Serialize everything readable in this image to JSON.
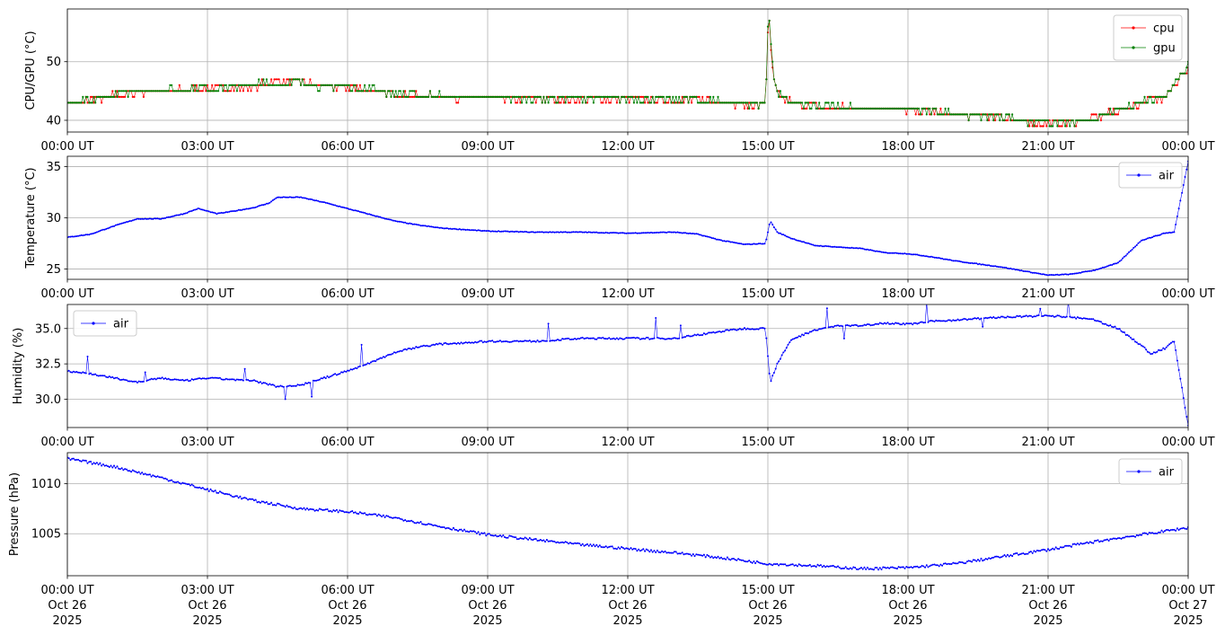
{
  "time_ticks": [
    "00:00 UT",
    "03:00 UT",
    "06:00 UT",
    "09:00 UT",
    "12:00 UT",
    "15:00 UT",
    "18:00 UT",
    "21:00 UT",
    "00:00 UT"
  ],
  "date_ticks": [
    [
      "Oct 26",
      "2025"
    ],
    [
      "Oct 26",
      "2025"
    ],
    [
      "Oct 26",
      "2025"
    ],
    [
      "Oct 26",
      "2025"
    ],
    [
      "Oct 26",
      "2025"
    ],
    [
      "Oct 26",
      "2025"
    ],
    [
      "Oct 26",
      "2025"
    ],
    [
      "Oct 26",
      "2025"
    ],
    [
      "Oct 27",
      "2025"
    ]
  ],
  "chart_data": [
    {
      "type": "line",
      "ylabel": "CPU/GPU (°C)",
      "xlim": [
        "2025-10-26 00:00 UT",
        "2025-10-27 00:00 UT"
      ],
      "ylim": [
        38,
        59
      ],
      "yticks": [
        40,
        50
      ],
      "grid": true,
      "legend": "top-right",
      "series": [
        {
          "name": "cpu",
          "color": "#ff0000",
          "points": [
            [
              0,
              43
            ],
            [
              0.5,
              43.3
            ],
            [
              1,
              44.2
            ],
            [
              1.5,
              44.8
            ],
            [
              2,
              44.9
            ],
            [
              2.5,
              45.2
            ],
            [
              3,
              45.4
            ],
            [
              3.5,
              45.6
            ],
            [
              4,
              45.8
            ],
            [
              4.5,
              46.8
            ],
            [
              5,
              46.6
            ],
            [
              5.5,
              45.9
            ],
            [
              6,
              45.6
            ],
            [
              6.5,
              45.2
            ],
            [
              7,
              44.3
            ],
            [
              8,
              44
            ],
            [
              9,
              43.8
            ],
            [
              10,
              43.7
            ],
            [
              11,
              43.6
            ],
            [
              12,
              43.6
            ],
            [
              13,
              43.5
            ],
            [
              14,
              43.3
            ],
            [
              14.5,
              42.6
            ],
            [
              14.95,
              42.8
            ],
            [
              15,
              55
            ],
            [
              15.03,
              57.5
            ],
            [
              15.08,
              50
            ],
            [
              15.15,
              45.5
            ],
            [
              15.3,
              43.5
            ],
            [
              15.6,
              43
            ],
            [
              16,
              42.3
            ],
            [
              17,
              42
            ],
            [
              18,
              41.8
            ],
            [
              18.5,
              41.4
            ],
            [
              19,
              41
            ],
            [
              20,
              40.7
            ],
            [
              20.5,
              39.8
            ],
            [
              21,
              39.5
            ],
            [
              21.5,
              39.6
            ],
            [
              22,
              40.4
            ],
            [
              22.5,
              41.6
            ],
            [
              23,
              43
            ],
            [
              23.5,
              44
            ],
            [
              24,
              49
            ]
          ]
        },
        {
          "name": "gpu",
          "color": "#008000",
          "points": [
            [
              0,
              42.8
            ],
            [
              0.5,
              43.2
            ],
            [
              1,
              44.4
            ],
            [
              1.5,
              45
            ],
            [
              2,
              45
            ],
            [
              2.5,
              45.3
            ],
            [
              3,
              45.5
            ],
            [
              3.5,
              45.7
            ],
            [
              4,
              46
            ],
            [
              4.5,
              46.5
            ],
            [
              5,
              46.3
            ],
            [
              5.5,
              45.8
            ],
            [
              6,
              45.7
            ],
            [
              6.5,
              45.3
            ],
            [
              7,
              44.5
            ],
            [
              8,
              44.1
            ],
            [
              9,
              43.9
            ],
            [
              10,
              43.8
            ],
            [
              11,
              43.7
            ],
            [
              12,
              43.7
            ],
            [
              13,
              43.6
            ],
            [
              14,
              43.4
            ],
            [
              14.5,
              42.7
            ],
            [
              14.95,
              42.9
            ],
            [
              15,
              56
            ],
            [
              15.03,
              58
            ],
            [
              15.08,
              51
            ],
            [
              15.15,
              46
            ],
            [
              15.3,
              43.6
            ],
            [
              15.6,
              43.1
            ],
            [
              16,
              42.4
            ],
            [
              17,
              42.1
            ],
            [
              18,
              41.9
            ],
            [
              18.5,
              41.5
            ],
            [
              19,
              41.1
            ],
            [
              20,
              40.6
            ],
            [
              20.5,
              39.9
            ],
            [
              21,
              39.7
            ],
            [
              21.5,
              39.7
            ],
            [
              22,
              40.2
            ],
            [
              22.5,
              41.8
            ],
            [
              23,
              43.2
            ],
            [
              23.5,
              44.2
            ],
            [
              24,
              49.5
            ]
          ]
        }
      ]
    },
    {
      "type": "line",
      "ylabel": "Temperature (°C)",
      "xlim": [
        "2025-10-26 00:00 UT",
        "2025-10-27 00:00 UT"
      ],
      "ylim": [
        24,
        36
      ],
      "yticks": [
        25,
        30,
        35
      ],
      "grid": true,
      "legend": "top-right",
      "series": [
        {
          "name": "air",
          "color": "#0000ff",
          "points": [
            [
              0,
              28.1
            ],
            [
              0.5,
              28.4
            ],
            [
              1,
              29.2
            ],
            [
              1.5,
              29.9
            ],
            [
              2,
              29.9
            ],
            [
              2.5,
              30.4
            ],
            [
              2.8,
              30.9
            ],
            [
              3.2,
              30.4
            ],
            [
              3.5,
              30.6
            ],
            [
              4,
              31
            ],
            [
              4.3,
              31.4
            ],
            [
              4.5,
              32
            ],
            [
              5,
              32
            ],
            [
              5.5,
              31.5
            ],
            [
              6,
              30.9
            ],
            [
              6.5,
              30.3
            ],
            [
              7,
              29.7
            ],
            [
              7.5,
              29.3
            ],
            [
              8,
              29
            ],
            [
              9,
              28.7
            ],
            [
              10,
              28.6
            ],
            [
              11,
              28.6
            ],
            [
              12,
              28.5
            ],
            [
              13,
              28.6
            ],
            [
              13.5,
              28.4
            ],
            [
              14,
              27.8
            ],
            [
              14.5,
              27.4
            ],
            [
              14.95,
              27.5
            ],
            [
              15.05,
              29.7
            ],
            [
              15.2,
              28.6
            ],
            [
              15.5,
              28
            ],
            [
              16,
              27.3
            ],
            [
              17,
              27
            ],
            [
              17.5,
              26.6
            ],
            [
              18,
              26.5
            ],
            [
              18.5,
              26.2
            ],
            [
              19,
              25.8
            ],
            [
              20,
              25.2
            ],
            [
              20.5,
              24.8
            ],
            [
              21,
              24.4
            ],
            [
              21.5,
              24.5
            ],
            [
              22,
              24.9
            ],
            [
              22.5,
              25.6
            ],
            [
              23,
              27.8
            ],
            [
              23.5,
              28.5
            ],
            [
              23.7,
              28.6
            ],
            [
              24,
              35.5
            ]
          ]
        }
      ]
    },
    {
      "type": "line",
      "ylabel": "Humidity (%)",
      "xlim": [
        "2025-10-26 00:00 UT",
        "2025-10-27 00:00 UT"
      ],
      "ylim": [
        28,
        36.7
      ],
      "yticks": [
        30.0,
        32.5,
        35.0
      ],
      "grid": true,
      "legend": "top-left",
      "series": [
        {
          "name": "air",
          "color": "#0000ff",
          "points": [
            [
              0,
              32
            ],
            [
              0.5,
              31.8
            ],
            [
              1,
              31.5
            ],
            [
              1.5,
              31.2
            ],
            [
              2,
              31.5
            ],
            [
              2.5,
              31.3
            ],
            [
              3,
              31.5
            ],
            [
              3.5,
              31.4
            ],
            [
              4,
              31.3
            ],
            [
              4.5,
              30.9
            ],
            [
              5,
              31
            ],
            [
              5.5,
              31.5
            ],
            [
              6,
              32
            ],
            [
              6.5,
              32.6
            ],
            [
              7,
              33.3
            ],
            [
              7.5,
              33.7
            ],
            [
              8,
              33.9
            ],
            [
              9,
              34.1
            ],
            [
              10,
              34.1
            ],
            [
              11,
              34.3
            ],
            [
              12,
              34.3
            ],
            [
              13,
              34.3
            ],
            [
              14,
              34.8
            ],
            [
              14.5,
              35
            ],
            [
              14.95,
              35
            ],
            [
              15.05,
              31.2
            ],
            [
              15.2,
              32.5
            ],
            [
              15.5,
              34.2
            ],
            [
              16,
              34.9
            ],
            [
              16.5,
              35.2
            ],
            [
              17,
              35.2
            ],
            [
              17.5,
              35.4
            ],
            [
              18,
              35.3
            ],
            [
              18.5,
              35.5
            ],
            [
              19,
              35.6
            ],
            [
              20,
              35.8
            ],
            [
              21,
              35.9
            ],
            [
              21.5,
              35.8
            ],
            [
              22,
              35.6
            ],
            [
              22.5,
              35
            ],
            [
              23,
              33.8
            ],
            [
              23.2,
              33.2
            ],
            [
              23.5,
              33.6
            ],
            [
              23.7,
              34.1
            ],
            [
              24,
              28.1
            ]
          ]
        }
      ]
    },
    {
      "type": "line",
      "ylabel": "Pressure (hPa)",
      "xlim": [
        "2025-10-26 00:00 UT",
        "2025-10-27 00:00 UT"
      ],
      "ylim": [
        1000.8,
        1013.1
      ],
      "yticks": [
        1005,
        1010
      ],
      "grid": true,
      "legend": "top-right",
      "series": [
        {
          "name": "air",
          "color": "#0000ff",
          "points": [
            [
              0,
              1012.5
            ],
            [
              1,
              1011.7
            ],
            [
              2,
              1010.6
            ],
            [
              3,
              1009.4
            ],
            [
              4,
              1008.3
            ],
            [
              5,
              1007.5
            ],
            [
              6,
              1007.2
            ],
            [
              7,
              1006.6
            ],
            [
              8,
              1005.7
            ],
            [
              9,
              1004.9
            ],
            [
              10,
              1004.4
            ],
            [
              11,
              1003.9
            ],
            [
              12,
              1003.5
            ],
            [
              13,
              1003.1
            ],
            [
              14,
              1002.6
            ],
            [
              15,
              1002.0
            ],
            [
              16,
              1001.8
            ],
            [
              17,
              1001.5
            ],
            [
              18,
              1001.6
            ],
            [
              19,
              1002.0
            ],
            [
              20,
              1002.7
            ],
            [
              21,
              1003.4
            ],
            [
              22,
              1004.2
            ],
            [
              23,
              1004.9
            ],
            [
              24,
              1005.6
            ]
          ]
        }
      ]
    }
  ]
}
